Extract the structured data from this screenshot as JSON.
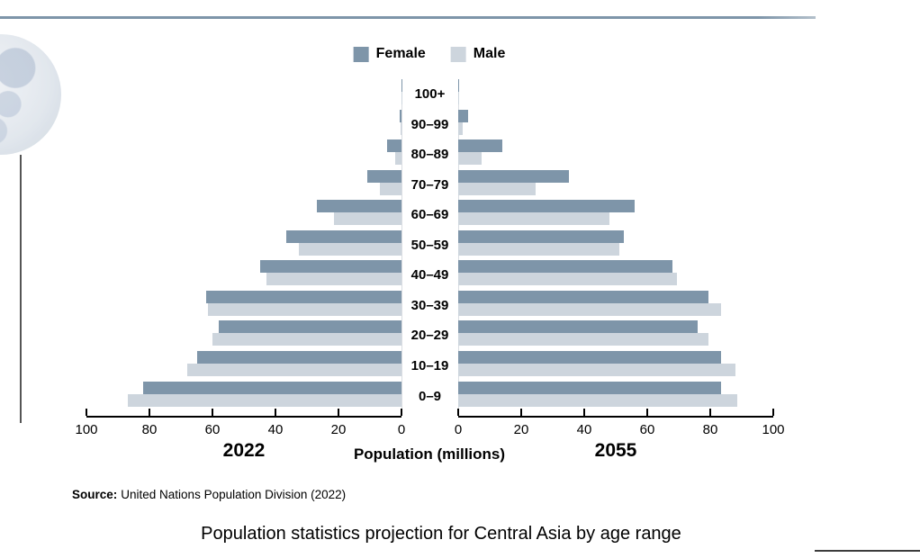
{
  "source": {
    "prefix": "Source:",
    "text": "United Nations Population Division (2022)"
  },
  "colors": {
    "female": "#7e95a9",
    "male": "#cdd5dd",
    "top_rule": "#7e95a9",
    "axis": "#000000"
  },
  "chart_data": {
    "type": "bar",
    "subtype": "population_pyramid",
    "title": "Population statistics projection for Central Asia by age range",
    "xlabel": "Population (millions)",
    "unit": "millions",
    "xlim": [
      0,
      100
    ],
    "grid": false,
    "legend_position": "top-center",
    "legend_labels": {
      "female": "Female",
      "male": "Male"
    },
    "age_groups_top_to_bottom": [
      "100+",
      "90–99",
      "80–89",
      "70–79",
      "60–69",
      "50–59",
      "40–49",
      "30–39",
      "20–29",
      "10–19",
      "0–9"
    ],
    "panels": [
      {
        "year": "2022",
        "side": "left",
        "axis_ticks": [
          100,
          80,
          60,
          40,
          20,
          0
        ],
        "female": [
          0.1,
          0.7,
          4.5,
          11,
          27,
          36.5,
          45,
          62,
          58,
          65,
          82
        ],
        "male": [
          0.05,
          0.3,
          2,
          7,
          21.5,
          32.5,
          43,
          61.5,
          60,
          68,
          87
        ]
      },
      {
        "year": "2055",
        "side": "right",
        "axis_ticks": [
          0,
          20,
          40,
          60,
          80,
          100
        ],
        "female": [
          0.3,
          3,
          14,
          35,
          56,
          52.5,
          68,
          79.5,
          76,
          83.5,
          83.5
        ],
        "male": [
          0.1,
          1.5,
          7.5,
          24.5,
          48,
          51,
          69.5,
          83.5,
          79.5,
          88,
          88.5
        ]
      }
    ]
  }
}
